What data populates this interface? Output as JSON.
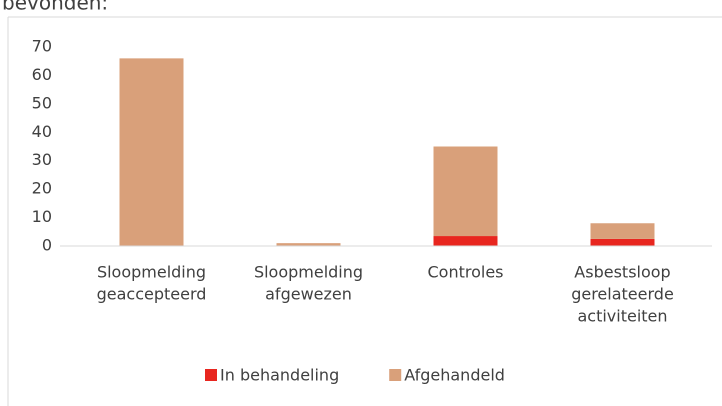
{
  "heading": "bevonden:",
  "chart_data": {
    "type": "stacked-bar",
    "categories": [
      [
        "Sloopmelding",
        "geaccepteerd"
      ],
      [
        "Sloopmelding",
        "afgewezen"
      ],
      [
        "Controles"
      ],
      [
        "Asbestsloop",
        "gerelateerde",
        "activiteiten"
      ]
    ],
    "series": [
      {
        "name": "In behandeling",
        "color": "#e8261f",
        "values": [
          0,
          0,
          3.5,
          2.5
        ]
      },
      {
        "name": "Afgehandeld",
        "color": "#d9a07a",
        "values": [
          66,
          1,
          31.5,
          5.5
        ]
      }
    ],
    "ylim": [
      0,
      70
    ],
    "yticks": [
      0,
      10,
      20,
      30,
      40,
      50,
      60,
      70
    ],
    "grid": false,
    "legend": "bottom"
  }
}
